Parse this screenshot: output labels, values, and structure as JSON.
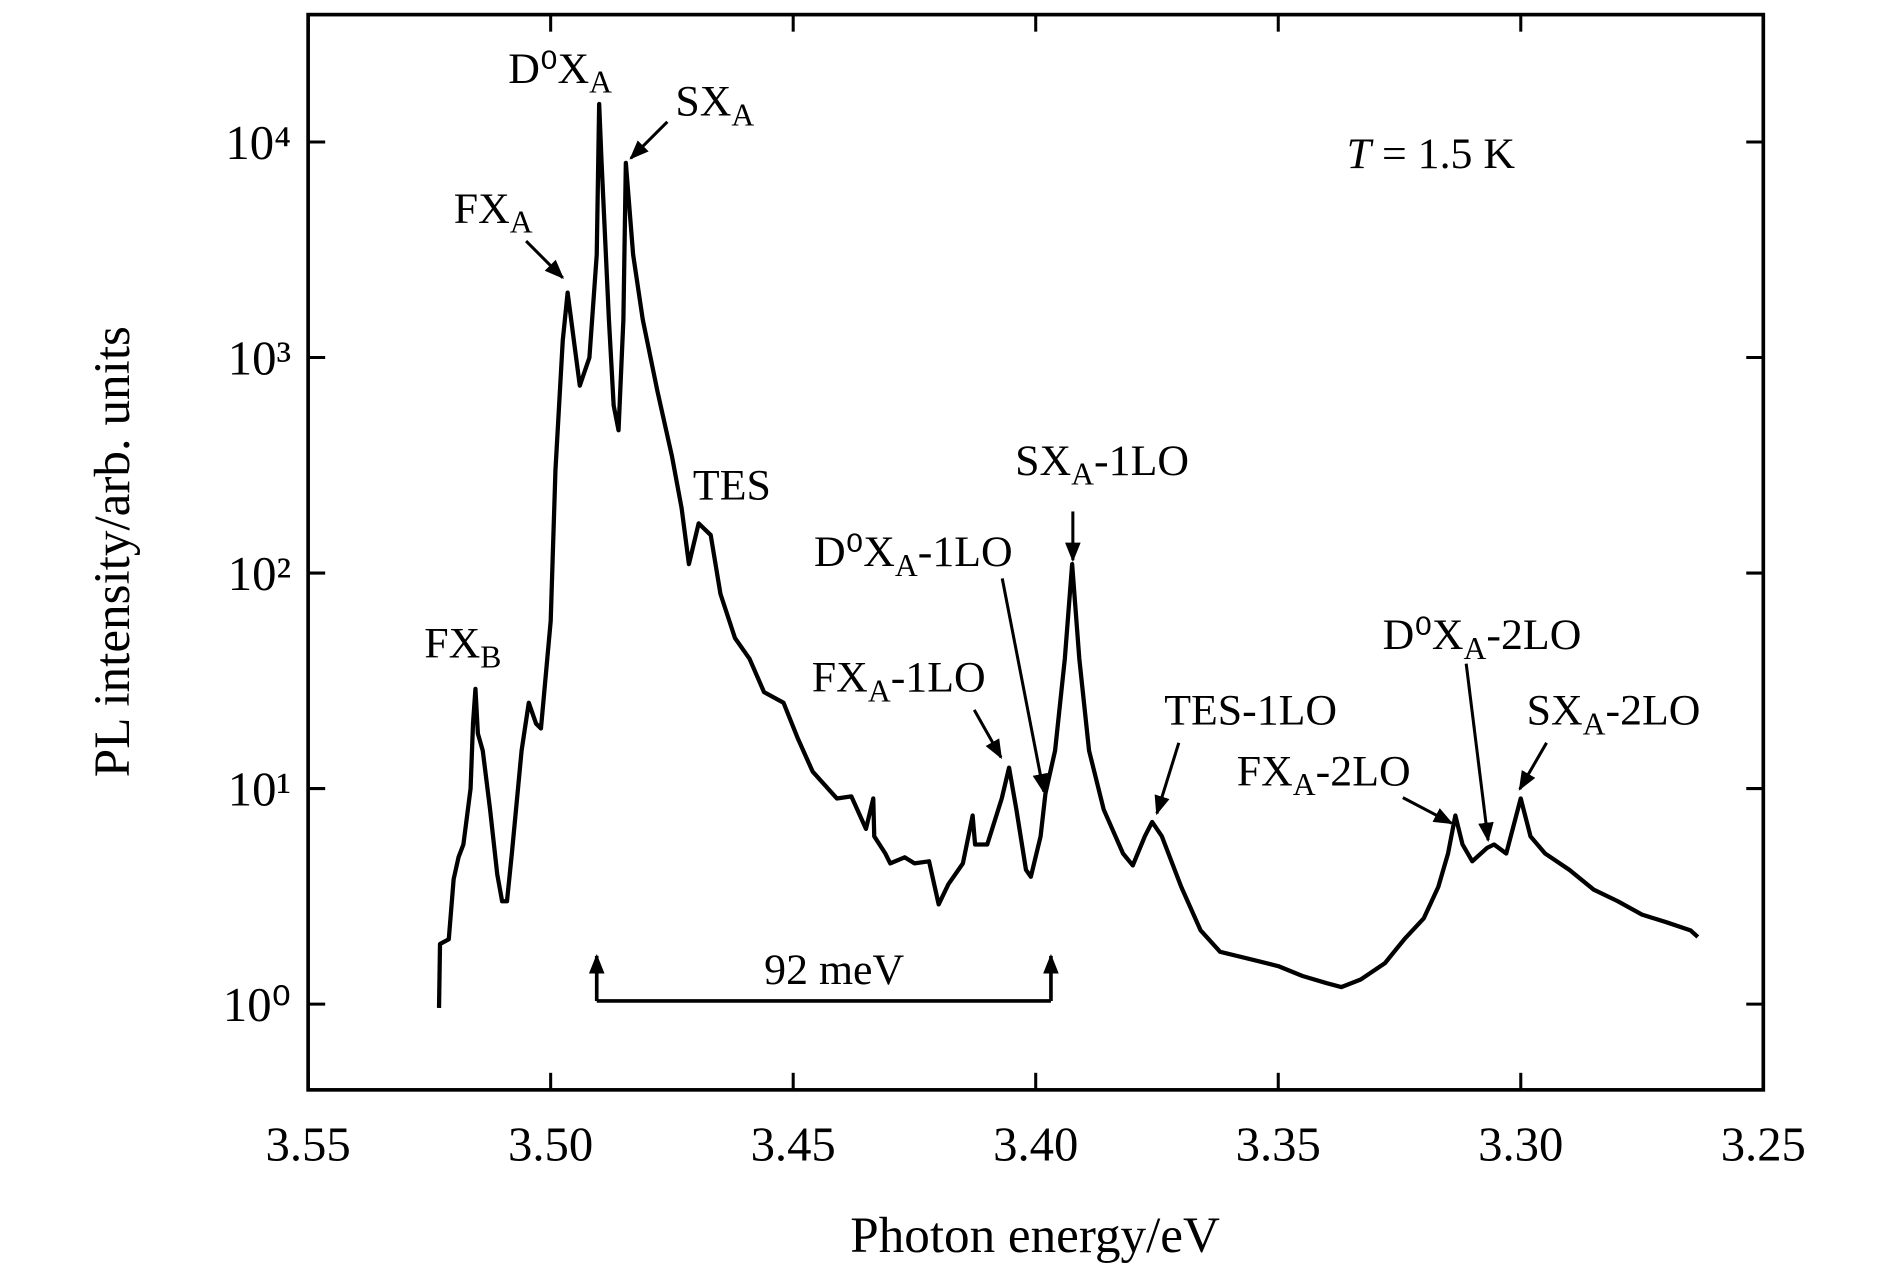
{
  "chart_data": {
    "type": "line",
    "xlabel": "Photon energy/eV",
    "ylabel": "PL intensity/arb. units",
    "xlim": [
      3.55,
      3.25
    ],
    "xticks": [
      {
        "value": 3.55,
        "label": "3.55"
      },
      {
        "value": 3.5,
        "label": "3.50"
      },
      {
        "value": 3.45,
        "label": "3.45"
      },
      {
        "value": 3.4,
        "label": "3.40"
      },
      {
        "value": 3.35,
        "label": "3.35"
      },
      {
        "value": 3.3,
        "label": "3.30"
      },
      {
        "value": 3.25,
        "label": "3.25"
      }
    ],
    "ylim": [
      0.4,
      39000
    ],
    "ylog": true,
    "yticks": [
      {
        "value": 1,
        "label": "10⁰"
      },
      {
        "value": 10,
        "label": "10¹"
      },
      {
        "value": 100,
        "label": "10²"
      },
      {
        "value": 1000,
        "label": "10³"
      },
      {
        "value": 10000,
        "label": "10⁴"
      }
    ],
    "color": "#000000",
    "x": [
      3.523,
      3.5228,
      3.521,
      3.52,
      3.519,
      3.518,
      3.5165,
      3.516,
      3.5155,
      3.515,
      3.514,
      3.5125,
      3.511,
      3.51,
      3.509,
      3.508,
      3.506,
      3.5045,
      3.503,
      3.502,
      3.5,
      3.499,
      3.4975,
      3.4965,
      3.495,
      3.494,
      3.492,
      3.4905,
      3.49,
      3.4895,
      3.488,
      3.487,
      3.486,
      3.485,
      3.4845,
      3.483,
      3.481,
      3.478,
      3.475,
      3.473,
      3.4715,
      3.4695,
      3.467,
      3.465,
      3.462,
      3.459,
      3.456,
      3.452,
      3.449,
      3.446,
      3.441,
      3.438,
      3.435,
      3.4335,
      3.4333,
      3.431,
      3.43,
      3.427,
      3.425,
      3.422,
      3.42,
      3.418,
      3.415,
      3.413,
      3.4125,
      3.41,
      3.407,
      3.4055,
      3.404,
      3.402,
      3.401,
      3.399,
      3.398,
      3.396,
      3.394,
      3.3925,
      3.391,
      3.389,
      3.386,
      3.382,
      3.38,
      3.3775,
      3.376,
      3.374,
      3.37,
      3.366,
      3.362,
      3.355,
      3.35,
      3.345,
      3.34,
      3.337,
      3.333,
      3.328,
      3.324,
      3.32,
      3.317,
      3.315,
      3.3135,
      3.312,
      3.31,
      3.307,
      3.3055,
      3.303,
      3.3,
      3.298,
      3.295,
      3.29,
      3.285,
      3.28,
      3.275,
      3.27,
      3.265,
      3.2635
    ],
    "values": [
      0.96,
      1.9,
      2.0,
      3.8,
      4.8,
      5.5,
      10,
      20,
      29,
      18,
      15,
      8,
      4,
      3,
      3,
      5,
      15,
      25,
      20,
      19,
      60,
      300,
      1200,
      2000,
      1100,
      740,
      1000,
      3000,
      15000,
      8000,
      1500,
      600,
      460,
      1500,
      8000,
      3000,
      1500,
      700,
      350,
      200,
      110,
      170,
      150,
      80,
      50,
      40,
      28,
      25,
      17,
      12,
      9,
      9.2,
      6.5,
      9,
      6,
      5,
      4.5,
      4.8,
      4.5,
      4.6,
      2.9,
      3.6,
      4.5,
      7.5,
      5.5,
      5.5,
      9,
      12.5,
      8,
      4.2,
      3.9,
      6,
      9.5,
      15,
      40,
      110,
      40,
      15,
      8,
      5,
      4.4,
      6,
      7,
      6,
      3.5,
      2.2,
      1.75,
      1.6,
      1.5,
      1.35,
      1.25,
      1.2,
      1.3,
      1.55,
      2.0,
      2.5,
      3.5,
      5,
      7.5,
      5.5,
      4.6,
      5.3,
      5.5,
      5,
      9,
      6,
      5,
      4.2,
      3.4,
      3.0,
      2.6,
      2.4,
      2.2,
      2.05
    ],
    "annotations": [
      {
        "text": "FX",
        "sub": "B"
      },
      {
        "text": "FX",
        "sub": "A"
      },
      {
        "text": "D⁰X",
        "sub": "A"
      },
      {
        "text": "SX",
        "sub": "A"
      },
      {
        "text": "TES"
      },
      {
        "text": "D⁰X",
        "sub": "A",
        "suffix": "-1LO"
      },
      {
        "text": "SX",
        "sub": "A",
        "suffix": "-1LO"
      },
      {
        "text": "FX",
        "sub": "A",
        "suffix": "-1LO"
      },
      {
        "text": "TES-1LO"
      },
      {
        "text": "FX",
        "sub": "A",
        "suffix": "-2LO"
      },
      {
        "text": "D⁰X",
        "sub": "A",
        "suffix": "-2LO"
      },
      {
        "text": "SX",
        "sub": "A",
        "suffix": "-2LO"
      },
      {
        "italic": "T",
        "suffix": " = 1.5 K"
      },
      {
        "text": "92 meV"
      }
    ]
  }
}
